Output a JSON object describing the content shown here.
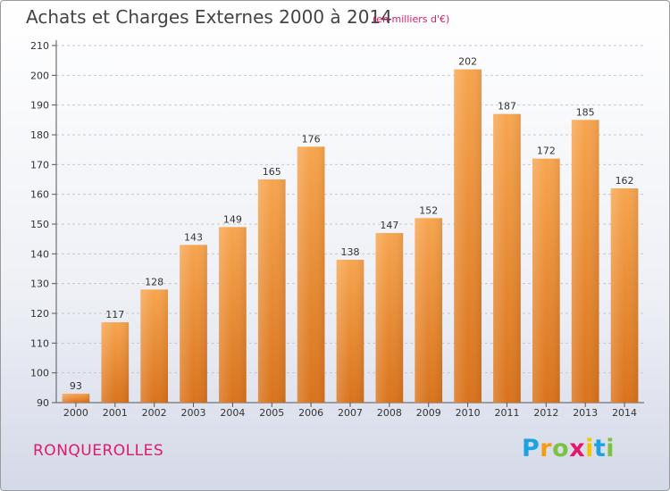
{
  "header": {
    "title": "Achats et Charges Externes 2000 à 2014",
    "subtitle": "(en milliers d'€)"
  },
  "footer": {
    "city": "RONQUEROLLES",
    "logo_letters": [
      "P",
      "r",
      "o",
      "x",
      "i",
      "t",
      "i"
    ],
    "logo_colors": [
      "#1aa3e0",
      "#f39c12",
      "#7cc242",
      "#e0196b",
      "#f2c500",
      "#1aa3e0",
      "#7cc242"
    ]
  },
  "chart_data": {
    "type": "bar",
    "title": "Achats et Charges Externes 2000 à 2014",
    "subtitle": "(en milliers d'€)",
    "xlabel": "",
    "ylabel": "",
    "categories": [
      "2000",
      "2001",
      "2002",
      "2003",
      "2004",
      "2005",
      "2006",
      "2007",
      "2008",
      "2009",
      "2010",
      "2011",
      "2012",
      "2013",
      "2014"
    ],
    "values": [
      93,
      117,
      128,
      143,
      149,
      165,
      176,
      138,
      147,
      152,
      202,
      187,
      172,
      185,
      162
    ],
    "ylim": [
      90,
      210
    ],
    "yticks": [
      90,
      100,
      110,
      120,
      130,
      140,
      150,
      160,
      170,
      180,
      190,
      200,
      210
    ],
    "grid": "horizontal dashed",
    "bar_color_top": "#f7a54f",
    "bar_color_bottom": "#d9731c"
  }
}
